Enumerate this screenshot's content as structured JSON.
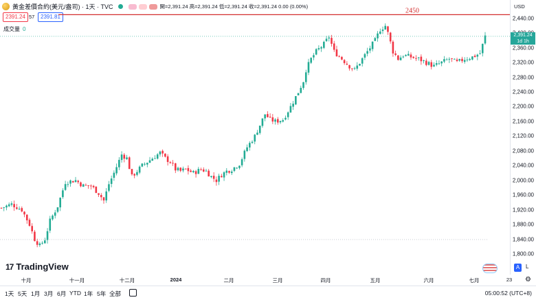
{
  "header": {
    "symbol_title": "黃金差價合約(美元/盎司) · 1天 · TVC",
    "ohlc": "開=2,391.24 高=2,391.24 低=2,391.24 收=2,391.24 0.00 (0.00%)"
  },
  "quote": {
    "sell": "2391.24",
    "spread": "57",
    "buy": "2391.81"
  },
  "volume": {
    "label": "成交量",
    "value": "0"
  },
  "currency": "USD",
  "price_tags": {
    "last": "2,391.24",
    "countdown": "1d 1h"
  },
  "annotation": {
    "label": "2450"
  },
  "logo_text": "TradingView",
  "icons": {
    "symbol": "gold-coin-icon",
    "status": "market-status-dot-icon",
    "logo": "tradingview-logo-icon",
    "calendar": "calendar-icon",
    "settings": "gear-icon",
    "flag": "us-flag-icon"
  },
  "chart_data": {
    "type": "candlestick",
    "y_ticks": [
      "2,440.00",
      "2,400.00",
      "2,360.00",
      "2,320.00",
      "2,280.00",
      "2,240.00",
      "2,200.00",
      "2,160.00",
      "2,120.00",
      "2,080.00",
      "2,040.00",
      "2,000.00",
      "1,960.00",
      "1,920.00",
      "1,880.00",
      "1,840.00",
      "1,800.00"
    ],
    "x_ticks": [
      "十月",
      "十一月",
      "十二月",
      "2024",
      "二月",
      "三月",
      "四月",
      "五月",
      "六月",
      "七月",
      "23"
    ],
    "ylim": [
      1785,
      2475
    ],
    "horizontal_line": 2450,
    "last_price": 2391.24,
    "colors": {
      "up": "#22ab94",
      "down": "#f23645",
      "line": "#d32f2f"
    },
    "close_path": [
      [
        0,
        1925
      ],
      [
        4,
        1935
      ],
      [
        8,
        1920
      ],
      [
        11,
        1880
      ],
      [
        13,
        1840
      ],
      [
        15,
        1822
      ],
      [
        17,
        1840
      ],
      [
        19,
        1890
      ],
      [
        22,
        1930
      ],
      [
        25,
        1995
      ],
      [
        29,
        2000
      ],
      [
        32,
        1985
      ],
      [
        35,
        1985
      ],
      [
        38,
        1965
      ],
      [
        40,
        1945
      ],
      [
        42,
        1990
      ],
      [
        44,
        2020
      ],
      [
        47,
        2070
      ],
      [
        49,
        2060
      ],
      [
        51,
        2010
      ],
      [
        53,
        2025
      ],
      [
        55,
        2040
      ],
      [
        57,
        2050
      ],
      [
        60,
        2065
      ],
      [
        62,
        2075
      ],
      [
        64,
        2060
      ],
      [
        66,
        2050
      ],
      [
        68,
        2030
      ],
      [
        70,
        2025
      ],
      [
        72,
        2030
      ],
      [
        75,
        2020
      ],
      [
        78,
        2030
      ],
      [
        80,
        2025
      ],
      [
        82,
        2010
      ],
      [
        84,
        2000
      ],
      [
        86,
        2015
      ],
      [
        88,
        2025
      ],
      [
        90,
        2030
      ],
      [
        93,
        2045
      ],
      [
        96,
        2090
      ],
      [
        99,
        2120
      ],
      [
        101,
        2150
      ],
      [
        103,
        2180
      ],
      [
        105,
        2165
      ],
      [
        107,
        2160
      ],
      [
        110,
        2165
      ],
      [
        113,
        2200
      ],
      [
        116,
        2240
      ],
      [
        118,
        2270
      ],
      [
        119,
        2300
      ],
      [
        121,
        2330
      ],
      [
        123,
        2350
      ],
      [
        126,
        2370
      ],
      [
        128,
        2390
      ],
      [
        130,
        2350
      ],
      [
        133,
        2330
      ],
      [
        136,
        2310
      ],
      [
        138,
        2300
      ],
      [
        141,
        2330
      ],
      [
        144,
        2360
      ],
      [
        146,
        2380
      ],
      [
        148,
        2410
      ],
      [
        150,
        2420
      ],
      [
        151,
        2400
      ],
      [
        153,
        2350
      ],
      [
        155,
        2330
      ],
      [
        157,
        2340
      ],
      [
        160,
        2335
      ],
      [
        163,
        2330
      ],
      [
        166,
        2320
      ],
      [
        169,
        2310
      ],
      [
        172,
        2320
      ],
      [
        175,
        2330
      ],
      [
        178,
        2320
      ],
      [
        181,
        2330
      ],
      [
        184,
        2335
      ],
      [
        187,
        2345
      ],
      [
        189,
        2391
      ]
    ],
    "seed": 7,
    "up_color": "#22ab94",
    "down_color": "#f23645"
  },
  "bottom_bar": {
    "periods": [
      "1天",
      "5天",
      "1月",
      "3月",
      "6月",
      "YTD",
      "1年",
      "5年",
      "全部"
    ],
    "time": "05:00:52 (UTC+8)"
  },
  "right_buttons": {
    "auto": "A",
    "log": "L"
  }
}
